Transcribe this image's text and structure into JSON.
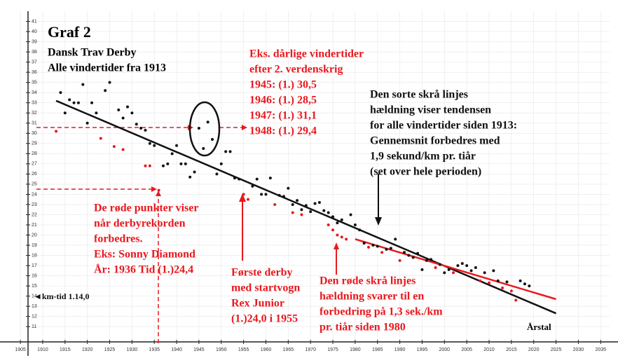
{
  "chart_data": {
    "type": "scatter",
    "title": "Graf 2",
    "subtitle": [
      "Dansk Trav Derby",
      "Alle vindertider fra 1913"
    ],
    "x_label": "Årstal",
    "xlim": [
      1902,
      2037
    ],
    "ylim": [
      9.5,
      42
    ],
    "xticks": [
      1905,
      1910,
      1915,
      1920,
      1925,
      1930,
      1935,
      1940,
      1945,
      1950,
      1955,
      1960,
      1965,
      1970,
      1975,
      1980,
      1985,
      1990,
      1995,
      2000,
      2005,
      2010,
      2015,
      2020,
      2025,
      2030,
      2035
    ],
    "yticks": [
      11,
      12,
      13,
      14,
      15,
      16,
      17,
      18,
      19,
      20,
      21,
      22,
      23,
      24,
      25,
      26,
      27,
      28,
      29,
      30,
      31,
      32,
      33,
      34,
      35,
      36,
      37,
      38,
      39,
      40,
      41
    ],
    "series": [
      {
        "color": "#111111",
        "x": [
          1914,
          1915,
          1916,
          1917,
          1918,
          1919,
          1920,
          1921,
          1922,
          1924,
          1925,
          1927,
          1928,
          1929,
          1930,
          1931,
          1932,
          1933,
          1934,
          1935,
          1937,
          1938,
          1939,
          1940,
          1941,
          1942,
          1943,
          1944,
          1945,
          1946,
          1947,
          1948,
          1949,
          1950,
          1951,
          1952,
          1953,
          1954,
          1957,
          1958,
          1959,
          1960,
          1961,
          1963,
          1964,
          1965,
          1966,
          1967,
          1968,
          1969,
          1970,
          1971,
          1972,
          1973,
          1974,
          1975,
          1976,
          1977,
          1979,
          1980,
          1981,
          1982,
          1984,
          1985,
          1987,
          1988,
          1989,
          1991,
          1992,
          1993,
          1994,
          1995,
          1996,
          1997,
          1999,
          2000,
          2001,
          2003,
          2004,
          2005,
          2006,
          2007,
          2009,
          2011,
          2012,
          2014,
          2017,
          2018,
          2019
        ],
        "values": [
          34.0,
          32.0,
          33.3,
          33.0,
          33.0,
          34.8,
          31.0,
          33.0,
          32.0,
          34.2,
          35.0,
          32.3,
          31.5,
          32.6,
          32.0,
          30.9,
          30.5,
          30.3,
          29.0,
          28.8,
          26.8,
          27.0,
          28.0,
          28.8,
          27.0,
          27.0,
          25.7,
          26.2,
          30.5,
          28.5,
          31.1,
          29.4,
          26.0,
          27.0,
          28.2,
          28.2,
          25.6,
          25.5,
          24.8,
          25.5,
          24.0,
          24.0,
          25.6,
          23.9,
          23.8,
          24.6,
          23.0,
          23.4,
          22.5,
          22.9,
          22.3,
          23.1,
          23.2,
          22.4,
          22.2,
          21.8,
          21.2,
          21.5,
          22.0,
          21.0,
          20.5,
          19.2,
          19.0,
          18.9,
          18.6,
          18.7,
          19.6,
          18.3,
          18.0,
          17.8,
          18.2,
          16.6,
          17.5,
          17.6,
          17.1,
          16.3,
          16.6,
          17.0,
          17.2,
          17.0,
          16.5,
          16.8,
          16.3,
          16.5,
          15.5,
          15.4,
          15.5,
          15.2,
          15.0
        ]
      },
      {
        "color": "#e8191e",
        "x": [
          1913,
          1923,
          1926,
          1928,
          1933,
          1934,
          1936,
          1955,
          1956,
          1962,
          1966,
          1968,
          1974,
          1975,
          1976,
          1977,
          1978,
          1983,
          1986,
          1990,
          1998,
          2002,
          2008,
          2010,
          2013,
          2015,
          2016
        ],
        "values": [
          30.2,
          29.5,
          28.7,
          28.4,
          26.8,
          26.8,
          24.4,
          24.0,
          23.5,
          23.0,
          22.2,
          22.0,
          21.0,
          20.5,
          20.0,
          19.8,
          19.6,
          18.8,
          18.3,
          17.5,
          16.8,
          16.3,
          15.5,
          15.3,
          14.8,
          14.5,
          13.6
        ]
      }
    ],
    "trend_lines": [
      {
        "color": "#111111",
        "x": [
          1913,
          2025
        ],
        "values": [
          33.2,
          12.3
        ]
      },
      {
        "color": "#e8191e",
        "x": [
          1980,
          2025
        ],
        "values": [
          19.6,
          13.7
        ]
      }
    ],
    "annotations": [
      {
        "color": "#e8191e",
        "lines": [
          "Eks. dårlige vindertider",
          "efter 2. verdenskrig",
          "1945: (1.) 30,5",
          "1946: (1.) 28,5",
          "1947: (1.) 31,1",
          "1948: (1.) 29,4"
        ]
      },
      {
        "color": "#111111",
        "lines": [
          "Den sorte skrå linjes",
          "hældning viser tendensen",
          "for alle vindertider siden 1913:",
          "Gennemsnit forbedres med",
          "1,9 sekund/km pr. tiår",
          "(set over hele perioden)"
        ]
      },
      {
        "color": "#e8191e",
        "lines": [
          "De røde punkter viser",
          "når derbyrekorden",
          "forbedres.",
          "Eks: Sonny Diamond",
          "År: 1936 Tid (1.)24,4"
        ]
      },
      {
        "color": "#e8191e",
        "lines": [
          "Første derby",
          "med startvogn",
          "Rex Junior",
          "(1.)24,0 i 1955"
        ]
      },
      {
        "color": "#e8191e",
        "lines": [
          "Den røde skrå linjes",
          "hældning svarer til en",
          "forbedring på 1,3 sek./km",
          "pr. tiår siden 1980"
        ]
      },
      {
        "color": "#111111",
        "lines": [
          "◄km-tid 1.14,0"
        ]
      }
    ]
  }
}
